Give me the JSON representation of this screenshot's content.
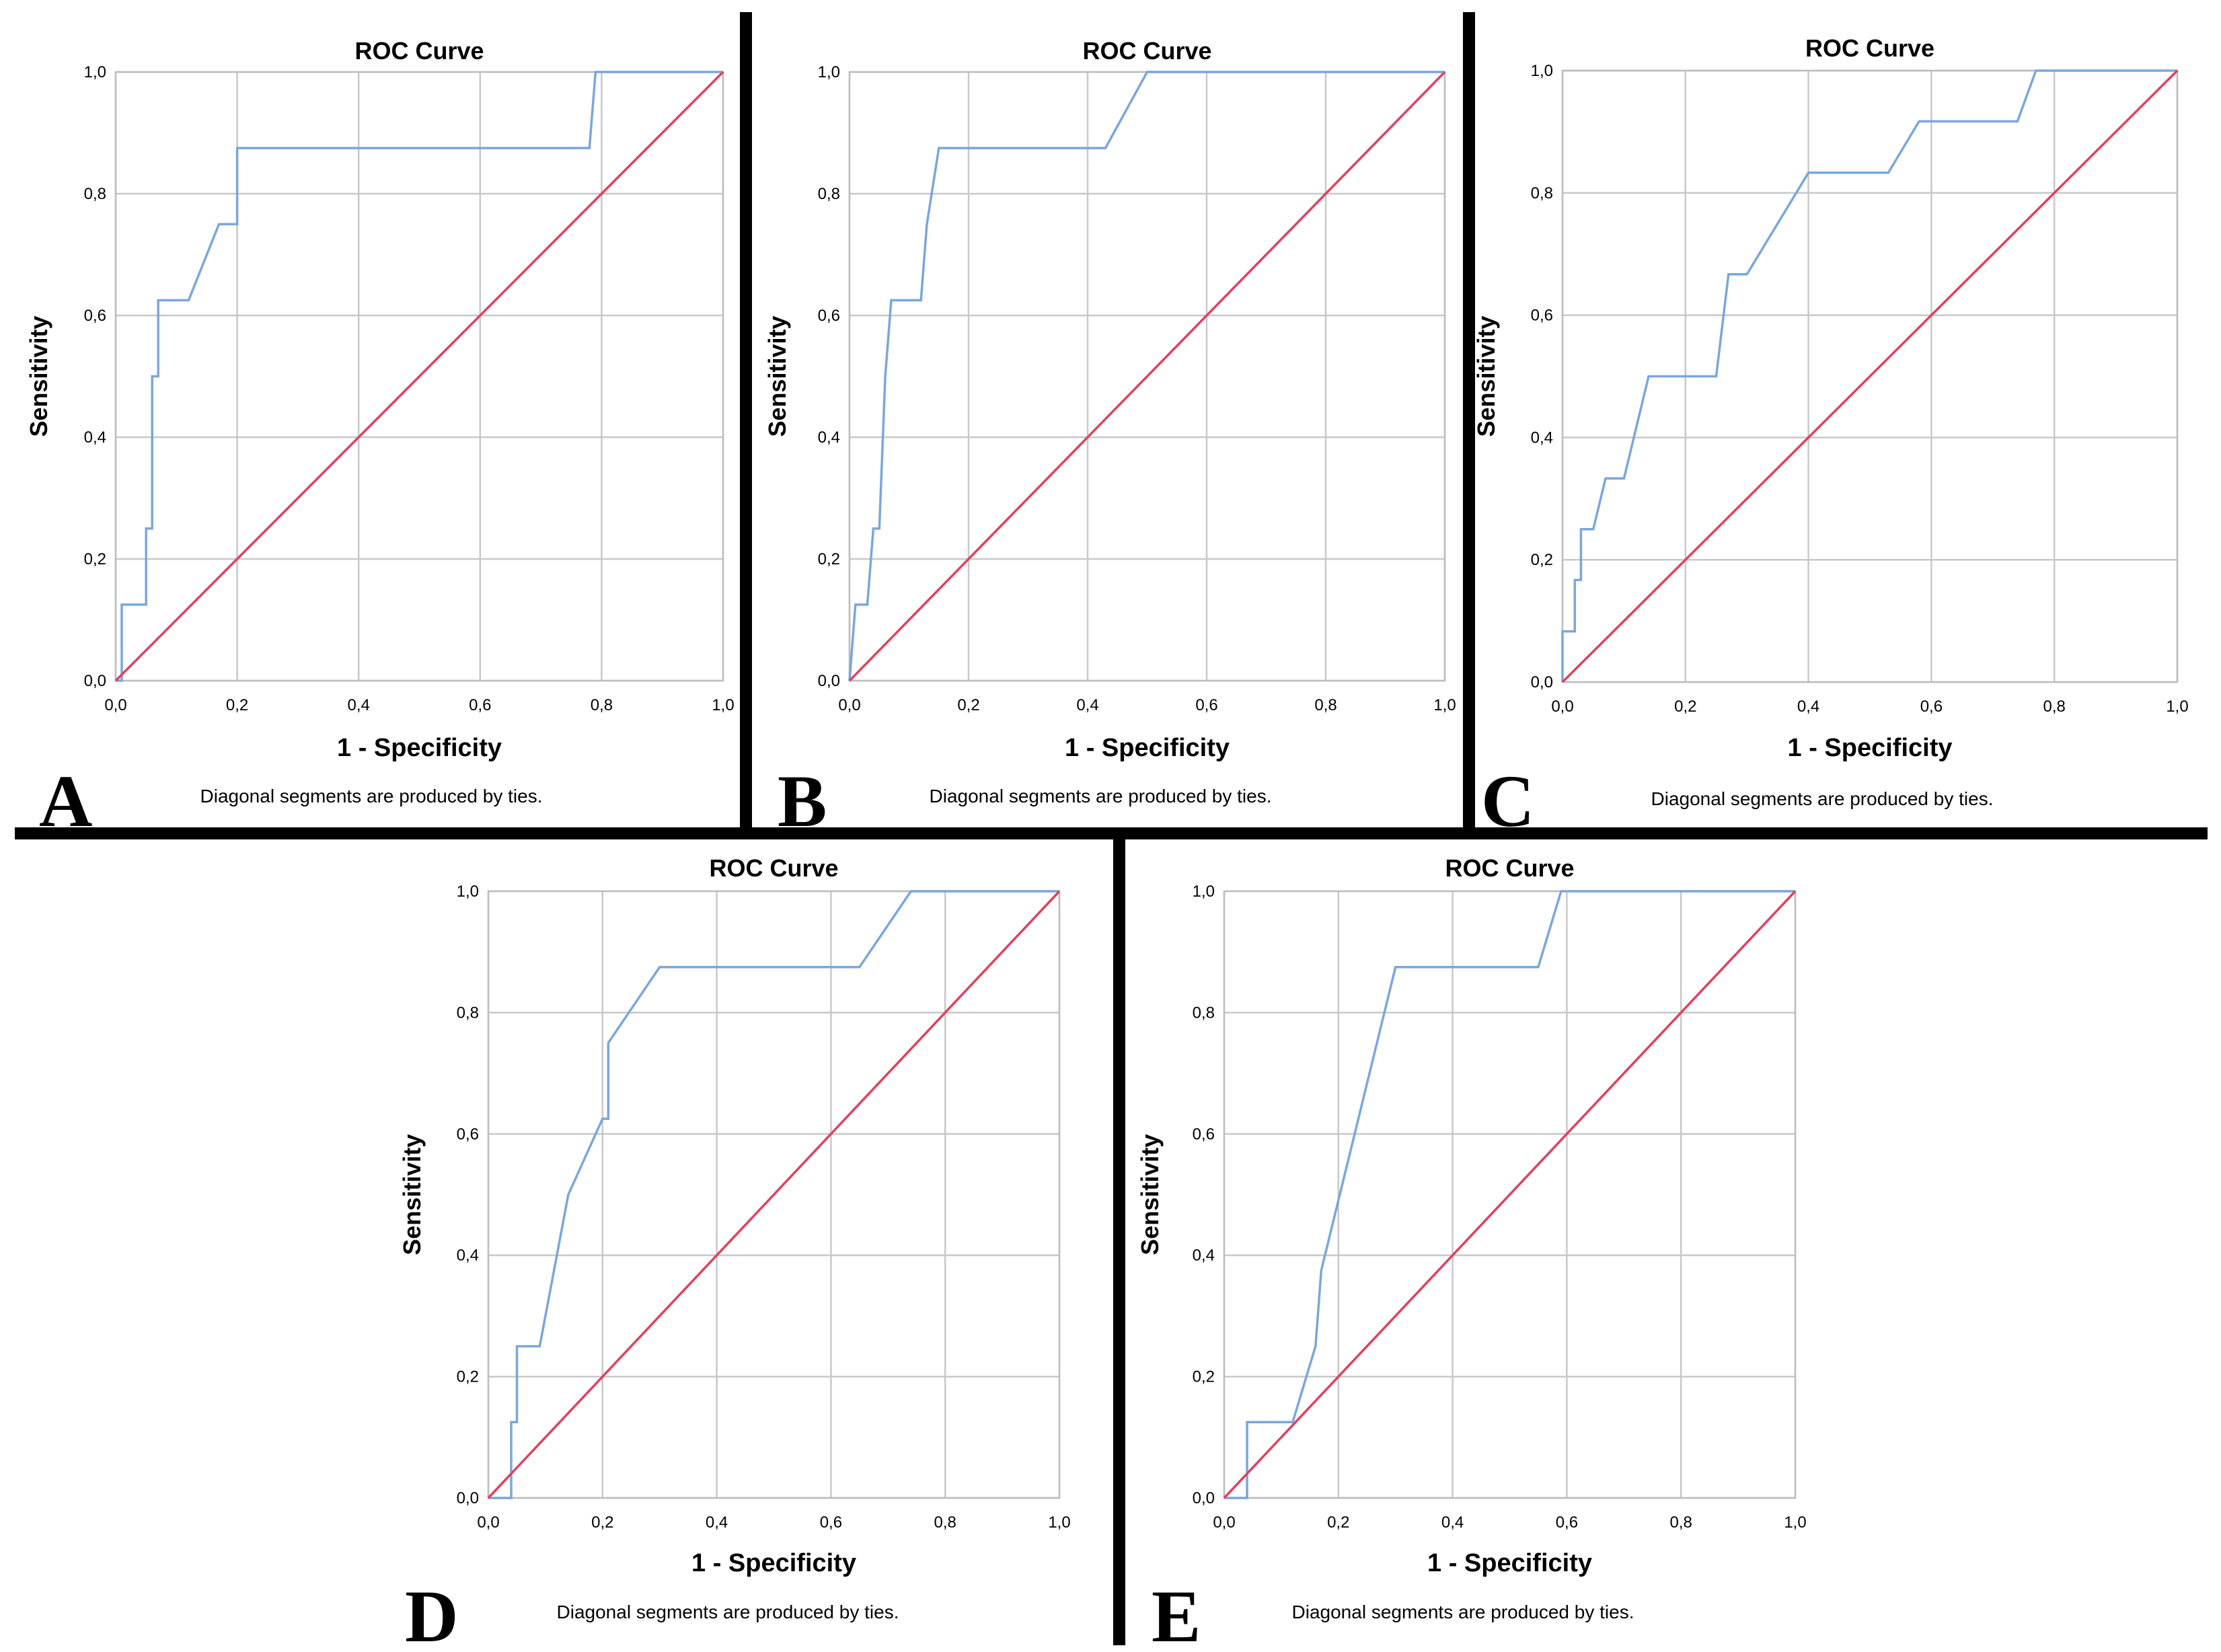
{
  "colors": {
    "roc_line": "#7aa6dc",
    "reference_line": "#e0405f",
    "grid": "#c8c8c8",
    "divider": "#000000"
  },
  "chart_data": [
    {
      "panel": "A",
      "type": "line",
      "title": "ROC Curve",
      "xlabel": "1 - Specificity",
      "ylabel": "Sensitivity",
      "note": "Diagonal segments are produced by ties.",
      "xlim": [
        0,
        1
      ],
      "ylim": [
        0,
        1
      ],
      "xticks": [
        "0,0",
        "0,2",
        "0,4",
        "0,6",
        "0,8",
        "1,0"
      ],
      "yticks": [
        "0,0",
        "0,2",
        "0,4",
        "0,6",
        "0,8",
        "1,0"
      ],
      "grid": true,
      "series": [
        {
          "role": "roc",
          "x": [
            0,
            0.01,
            0.01,
            0.05,
            0.05,
            0.06,
            0.06,
            0.07,
            0.07,
            0.09,
            0.09,
            0.12,
            0.17,
            0.2,
            0.2,
            0.78,
            0.79,
            1.0
          ],
          "y": [
            0,
            0,
            0.125,
            0.125,
            0.25,
            0.25,
            0.5,
            0.5,
            0.625,
            0.625,
            0.625,
            0.625,
            0.75,
            0.75,
            0.875,
            0.875,
            1.0,
            1.0
          ]
        },
        {
          "role": "reference",
          "x": [
            0,
            1
          ],
          "y": [
            0,
            1
          ]
        }
      ]
    },
    {
      "panel": "B",
      "type": "line",
      "title": "ROC Curve",
      "xlabel": "1 - Specificity",
      "ylabel": "Sensitivity",
      "note": "Diagonal segments are produced by ties.",
      "xlim": [
        0,
        1
      ],
      "ylim": [
        0,
        1
      ],
      "xticks": [
        "0,0",
        "0,2",
        "0,4",
        "0,6",
        "0,8",
        "1,0"
      ],
      "yticks": [
        "0,0",
        "0,2",
        "0,4",
        "0,6",
        "0,8",
        "1,0"
      ],
      "grid": true,
      "series": [
        {
          "role": "roc",
          "x": [
            0,
            0.01,
            0.03,
            0.04,
            0.05,
            0.06,
            0.07,
            0.08,
            0.12,
            0.13,
            0.15,
            0.43,
            0.5,
            1.0
          ],
          "y": [
            0,
            0.125,
            0.125,
            0.25,
            0.25,
            0.5,
            0.625,
            0.625,
            0.625,
            0.75,
            0.875,
            0.875,
            1.0,
            1.0
          ]
        },
        {
          "role": "reference",
          "x": [
            0,
            1
          ],
          "y": [
            0,
            1
          ]
        }
      ]
    },
    {
      "panel": "C",
      "type": "line",
      "title": "ROC Curve",
      "xlabel": "1 - Specificity",
      "ylabel": "Sensitivity",
      "note": "Diagonal segments are produced by ties.",
      "xlim": [
        0,
        1
      ],
      "ylim": [
        0,
        1
      ],
      "xticks": [
        "0,0",
        "0,2",
        "0,4",
        "0,6",
        "0,8",
        "1,0"
      ],
      "yticks": [
        "0,0",
        "0,2",
        "0,4",
        "0,6",
        "0,8",
        "1,0"
      ],
      "grid": true,
      "series": [
        {
          "role": "roc",
          "x": [
            0,
            0.0,
            0.02,
            0.02,
            0.03,
            0.03,
            0.05,
            0.07,
            0.1,
            0.14,
            0.25,
            0.27,
            0.3,
            0.4,
            0.53,
            0.58,
            0.74,
            0.77,
            1.0
          ],
          "y": [
            0,
            0.083,
            0.083,
            0.167,
            0.167,
            0.25,
            0.25,
            0.333,
            0.333,
            0.5,
            0.5,
            0.667,
            0.667,
            0.833,
            0.833,
            0.917,
            0.917,
            1.0,
            1.0
          ]
        },
        {
          "role": "reference",
          "x": [
            0,
            1
          ],
          "y": [
            0,
            1
          ]
        }
      ]
    },
    {
      "panel": "D",
      "type": "line",
      "title": "ROC Curve",
      "xlabel": "1 - Specificity",
      "ylabel": "Sensitivity",
      "note": "Diagonal segments are produced by ties.",
      "xlim": [
        0,
        1
      ],
      "ylim": [
        0,
        1
      ],
      "xticks": [
        "0,0",
        "0,2",
        "0,4",
        "0,6",
        "0,8",
        "1,0"
      ],
      "yticks": [
        "0,0",
        "0,2",
        "0,4",
        "0,6",
        "0,8",
        "1,0"
      ],
      "grid": true,
      "series": [
        {
          "role": "roc",
          "x": [
            0,
            0.04,
            0.04,
            0.05,
            0.05,
            0.09,
            0.14,
            0.2,
            0.21,
            0.21,
            0.3,
            0.65,
            0.74,
            1.0
          ],
          "y": [
            0,
            0,
            0.125,
            0.125,
            0.25,
            0.25,
            0.5,
            0.625,
            0.625,
            0.75,
            0.875,
            0.875,
            1.0,
            1.0
          ]
        },
        {
          "role": "reference",
          "x": [
            0,
            1
          ],
          "y": [
            0,
            1
          ]
        }
      ]
    },
    {
      "panel": "E",
      "type": "line",
      "title": "ROC Curve",
      "xlabel": "1 - Specificity",
      "ylabel": "Sensitivity",
      "note": "Diagonal segments are produced by ties.",
      "xlim": [
        0,
        1
      ],
      "ylim": [
        0,
        1
      ],
      "xticks": [
        "0,0",
        "0,2",
        "0,4",
        "0,6",
        "0,8",
        "1,0"
      ],
      "yticks": [
        "0,0",
        "0,2",
        "0,4",
        "0,6",
        "0,8",
        "1,0"
      ],
      "grid": true,
      "series": [
        {
          "role": "roc",
          "x": [
            0,
            0.04,
            0.04,
            0.12,
            0.16,
            0.17,
            0.3,
            0.55,
            0.59,
            1.0
          ],
          "y": [
            0,
            0,
            0.125,
            0.125,
            0.25,
            0.375,
            0.875,
            0.875,
            1.0,
            1.0
          ]
        },
        {
          "role": "reference",
          "x": [
            0,
            1
          ],
          "y": [
            0,
            1
          ]
        }
      ]
    }
  ]
}
